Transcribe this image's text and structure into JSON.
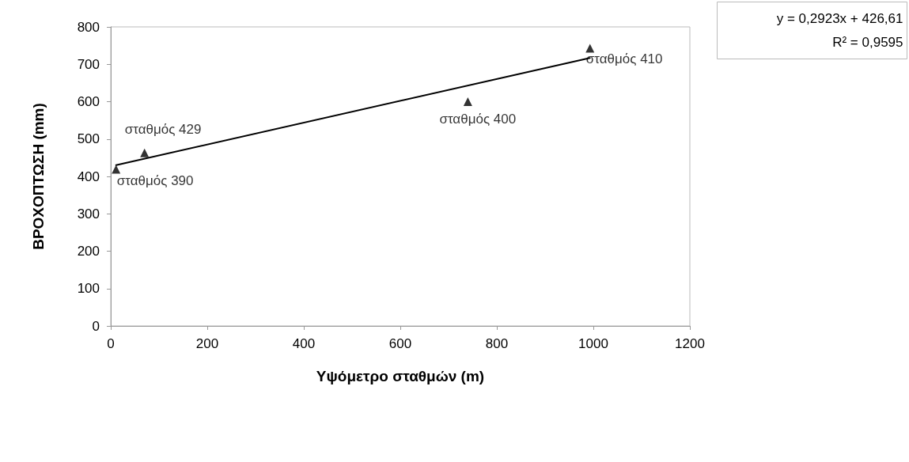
{
  "chart_data": {
    "type": "scatter",
    "xlabel": "Υψόμετρο σταθμών (m)",
    "ylabel": "ΒΡΟΧΟΠΤΩΣΗ (mm)",
    "x": [
      11,
      70,
      740,
      993
    ],
    "series": [
      {
        "color": "#000000",
        "values": [
          419,
          463,
          600,
          743
        ],
        "marker": "triangle"
      },
      {
        "type": "line",
        "color": "#000000",
        "x": [
          11,
          993
        ],
        "values": [
          430,
          717
        ],
        "marker": "none"
      }
    ],
    "xlim": [
      0,
      1200
    ],
    "xticks": [
      0,
      200,
      400,
      600,
      800,
      1000,
      1200
    ],
    "ylim": [
      0,
      800
    ],
    "yticks": [
      0,
      100,
      200,
      300,
      400,
      500,
      600,
      700,
      800
    ],
    "grid": false,
    "annotations": [
      {
        "text": "σταθμός 390",
        "x": 11,
        "y": 419
      },
      {
        "text": "σταθμός 429",
        "x": 70,
        "y": 463
      },
      {
        "text": "σταθμός 400",
        "x": 740,
        "y": 600
      },
      {
        "text": "σταθμός 410",
        "x": 993,
        "y": 743
      },
      "y = 0,2923x + 426,61",
      "R² = 0,9595"
    ]
  }
}
